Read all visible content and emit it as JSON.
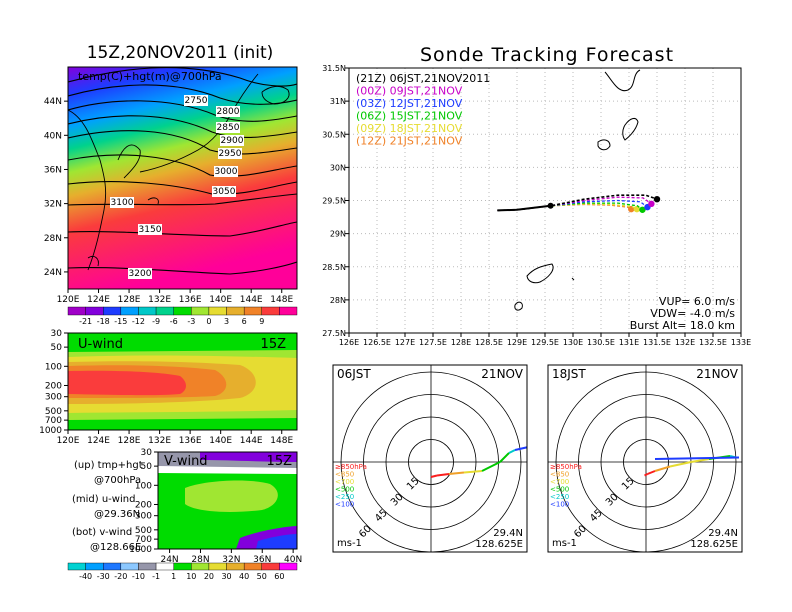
{
  "page": {
    "left_title": "15Z,20NOV2011 (init)",
    "right_title": "Sonde Tracking Forecast"
  },
  "map_panel": {
    "label": "temp(C)+hgt(m)@700hPa",
    "lat_labels": [
      "44N",
      "40N",
      "36N",
      "32N",
      "28N",
      "24N"
    ],
    "lon_labels": [
      "120E",
      "124E",
      "128E",
      "132E",
      "136E",
      "140E",
      "144E",
      "148E"
    ],
    "contour_labels": [
      "2750",
      "2800",
      "2850",
      "2900",
      "2950",
      "3000",
      "3050",
      "3100",
      "3150",
      "3200"
    ]
  },
  "temp_colorbar": {
    "labels": [
      "-21",
      "-18",
      "-15",
      "-12",
      "-9",
      "-6",
      "-3",
      "0",
      "3",
      "6",
      "9"
    ],
    "colors": [
      "#a000c8",
      "#8200dc",
      "#1e3cff",
      "#00a0ff",
      "#00c8c8",
      "#00d28c",
      "#00dc00",
      "#a0e632",
      "#e6dc32",
      "#e6af2d",
      "#f08228",
      "#fa3c3c",
      "#ff0099"
    ]
  },
  "uwind_panel": {
    "title": "U-wind",
    "time": "15Z",
    "p_labels": [
      "30",
      "50",
      "100",
      "200",
      "300",
      "500",
      "700",
      "1000"
    ],
    "lon_labels": [
      "120E",
      "124E",
      "128E",
      "132E",
      "136E",
      "140E",
      "144E",
      "148E"
    ]
  },
  "vwind_panel": {
    "title": "V-wind",
    "time": "15Z",
    "p_labels": [
      "30",
      "50",
      "100",
      "200",
      "300",
      "500",
      "700",
      "1000"
    ],
    "lat_labels": [
      "24N",
      "28N",
      "32N",
      "36N",
      "40N"
    ]
  },
  "side_notes": {
    "up1": "(up) tmp+hgt",
    "up2": "@700hPa",
    "mid1": "(mid) u-wind",
    "mid2": "@29.36N",
    "bot1": "(bot) v-wind",
    "bot2": "@128.66E"
  },
  "wind_colorbar": {
    "labels": [
      "-40",
      "-30",
      "-20",
      "-10",
      "-1",
      "1",
      "10",
      "20",
      "30",
      "40",
      "50",
      "60"
    ],
    "colors": [
      "#00d2d2",
      "#00a0ff",
      "#1e78ff",
      "#8cc8ff",
      "#9696aa",
      "#ffffff",
      "#00dc00",
      "#a0e632",
      "#e6dc32",
      "#e6af2d",
      "#f08228",
      "#fa3c3c",
      "#ff00ff"
    ]
  },
  "track_panel": {
    "lat_labels": [
      "31.5N",
      "31N",
      "30.5N",
      "30N",
      "29.5N",
      "29N",
      "28.5N",
      "28N",
      "27.5N"
    ],
    "lon_labels": [
      "126E",
      "126.5E",
      "127E",
      "127.5E",
      "128E",
      "128.5E",
      "129E",
      "129.5E",
      "130E",
      "130.5E",
      "131E",
      "131.5E",
      "132E",
      "132.5E",
      "133E"
    ],
    "legend": [
      {
        "text": "(21Z)  06JST,21NOV2011",
        "color": "#000000"
      },
      {
        "text": "(00Z)  09JST,21NOV",
        "color": "#c800c8"
      },
      {
        "text": "(03Z)  12JST,21NOV",
        "color": "#1e3cff"
      },
      {
        "text": "(06Z)  15JST,21NOV",
        "color": "#00c800"
      },
      {
        "text": "(09Z)  18JST,21NOV",
        "color": "#e6dc32"
      },
      {
        "text": "(12Z)  21JST,21NOV",
        "color": "#f08228"
      }
    ],
    "vup": "VUP=  6.0  m/s",
    "vdw": "VDW= -4.0  m/s",
    "burst": "Burst Alt=  18.0  km"
  },
  "hodographs": [
    {
      "time": "06JST",
      "date": "21NOV",
      "lat": "29.4N",
      "lon": "128.625E",
      "unit": "ms-1"
    },
    {
      "time": "18JST",
      "date": "21NOV",
      "lat": "29.4N",
      "lon": "128.625E",
      "unit": "ms-1"
    }
  ],
  "hodo_common": {
    "ring_labels": [
      "15",
      "30",
      "45",
      "60"
    ],
    "levels": [
      {
        "text": "≥850hPa",
        "color": "#fa1e1e"
      },
      {
        "text": "<850",
        "color": "#f0a028"
      },
      {
        "text": "<700",
        "color": "#e6dc32"
      },
      {
        "text": "<500",
        "color": "#00c800"
      },
      {
        "text": "<250",
        "color": "#00c8c8"
      },
      {
        "text": "<100",
        "color": "#1e3cff"
      }
    ]
  },
  "chart_data": [
    {
      "type": "heatmap",
      "title": "15Z,20NOV2011 (init)",
      "variable": "temp(C)+hgt(m)@700hPa",
      "xlim": [
        120,
        150
      ],
      "ylim": [
        22,
        48
      ],
      "colorbar_min": -21,
      "colorbar_max": 9,
      "contours_m": [
        2750,
        2800,
        2850,
        2900,
        2950,
        3000,
        3050,
        3100,
        3150,
        3200
      ]
    },
    {
      "type": "heatmap",
      "title": "U-wind",
      "time": "15Z",
      "xlim": [
        120,
        150
      ],
      "y_pressure_hPa": [
        1000,
        30
      ],
      "jet_core_pressure_hPa": 250,
      "jet_core_lon_range": [
        120,
        134
      ]
    },
    {
      "type": "heatmap",
      "title": "V-wind",
      "time": "15Z",
      "xlim": [
        24,
        40
      ],
      "y_pressure_hPa": [
        1000,
        30
      ]
    },
    {
      "type": "line",
      "title": "Sonde Tracking Forecast",
      "xlim": [
        126,
        133
      ],
      "ylim": [
        27.5,
        31.5
      ],
      "launch": [
        129.6,
        29.42
      ],
      "series": [
        {
          "name": "(21Z)  06JST,21NOV2011",
          "x": [
            128.65,
            129.0,
            129.6,
            130.2,
            130.8,
            131.3,
            131.5
          ],
          "y": [
            29.35,
            29.36,
            29.42,
            29.52,
            29.58,
            29.58,
            29.52
          ]
        },
        {
          "name": "(00Z)  09JST,21NOV",
          "x": [
            128.65,
            129.0,
            129.6,
            130.2,
            130.8,
            131.25,
            131.4
          ],
          "y": [
            29.35,
            29.36,
            29.42,
            29.5,
            29.55,
            29.54,
            29.45
          ]
        },
        {
          "name": "(03Z)  12JST,21NOV",
          "x": [
            128.65,
            129.0,
            129.6,
            130.2,
            130.8,
            131.2,
            131.33
          ],
          "y": [
            29.35,
            29.36,
            29.42,
            29.48,
            29.5,
            29.48,
            29.4
          ]
        },
        {
          "name": "(06Z)  15JST,21NOV",
          "x": [
            128.65,
            129.0,
            129.6,
            130.2,
            130.8,
            131.15,
            131.24
          ],
          "y": [
            29.35,
            29.36,
            29.42,
            29.46,
            29.46,
            29.42,
            29.36
          ]
        },
        {
          "name": "(09Z)  18JST,21NOV",
          "x": [
            128.65,
            129.0,
            129.6,
            130.2,
            130.7,
            131.05,
            131.14
          ],
          "y": [
            29.35,
            29.36,
            29.42,
            29.45,
            29.44,
            29.41,
            29.37
          ]
        },
        {
          "name": "(12Z)  21JST,21NOV",
          "x": [
            128.65,
            129.0,
            129.6,
            130.2,
            130.65,
            130.97,
            131.04
          ],
          "y": [
            29.35,
            29.36,
            29.42,
            29.44,
            29.43,
            29.4,
            29.37
          ]
        }
      ]
    },
    {
      "type": "line",
      "title": "06JST 21NOV hodograph",
      "unit": "ms-1",
      "ring_values": [
        15,
        30,
        45,
        60
      ],
      "u": [
        0,
        4,
        12,
        22,
        34,
        46,
        52,
        56,
        65
      ],
      "v": [
        -10,
        -9,
        -8,
        -7,
        -6,
        0,
        6,
        8,
        10
      ],
      "level_colors": [
        "#fa1e1e",
        "#f0a028",
        "#e6dc32",
        "#00c800",
        "#00c8c8",
        "#1e3cff"
      ]
    },
    {
      "type": "line",
      "title": "18JST 21NOV hodograph",
      "unit": "ms-1",
      "ring_values": [
        15,
        30,
        45,
        60
      ],
      "u": [
        -1,
        1,
        6,
        16,
        30,
        42,
        56,
        60,
        62,
        6
      ],
      "v": [
        -9,
        -8,
        -6,
        -3,
        0,
        2,
        4,
        3,
        3,
        2
      ],
      "level_colors": [
        "#fa1e1e",
        "#f0a028",
        "#e6dc32",
        "#00c800",
        "#00c8c8",
        "#1e3cff"
      ]
    }
  ]
}
